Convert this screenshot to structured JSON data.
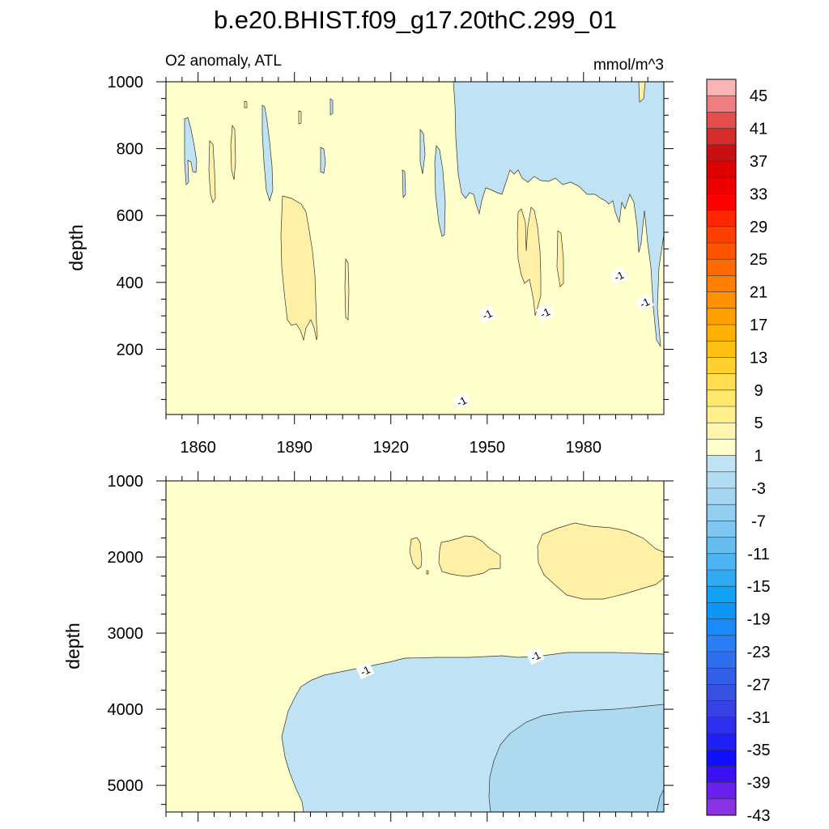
{
  "title": "b.e20.BHIST.f09_g17.20thC.299_01",
  "panel_left_label": "O2 anomaly, ATL",
  "panel_right_label": "mmol/m^3",
  "contour_label": "-1",
  "colors": {
    "background_fill": "#ffffcc",
    "pos_fill": "#fff0a5",
    "neg_fill": "#bfe3f4",
    "neg_fill_2": "#aedaf0",
    "contour_line": "#333333",
    "axis": "#000000"
  },
  "chart_data": [
    {
      "type": "heatmap",
      "title": "O2 anomaly, ATL",
      "units": "mmol/m^3",
      "xlabel": "",
      "ylabel": "depth",
      "xlim": [
        1850,
        2005
      ],
      "ylim": [
        1000,
        5
      ],
      "x_ticks": [
        1860,
        1890,
        1920,
        1950,
        1980
      ],
      "x_tick_labels": [
        "1860",
        "1890",
        "1920",
        "1950",
        "1980"
      ],
      "y_ticks": [
        200,
        400,
        600,
        800,
        1000
      ],
      "y_tick_labels": [
        "200",
        "400",
        "600",
        "800",
        "1000"
      ],
      "contour_labels": [
        {
          "x": 1942,
          "y": 45,
          "text": "-1"
        },
        {
          "x": 1950,
          "y": 305,
          "text": "-1"
        },
        {
          "x": 1968,
          "y": 310,
          "text": "-1"
        },
        {
          "x": 1991,
          "y": 420,
          "text": "-1"
        },
        {
          "x": 1999,
          "y": 340,
          "text": "-1"
        }
      ]
    },
    {
      "type": "heatmap",
      "title": "",
      "units": "mmol/m^3",
      "xlabel": "",
      "ylabel": "depth",
      "xlim": [
        1850,
        2005
      ],
      "ylim": [
        1000,
        5350
      ],
      "x_ticks": [
        1860,
        1890,
        1920,
        1950,
        1980
      ],
      "x_tick_labels": [
        "",
        "",
        "",
        "",
        ""
      ],
      "y_ticks": [
        1000,
        2000,
        3000,
        4000,
        5000
      ],
      "y_tick_labels": [
        "1000",
        "2000",
        "3000",
        "4000",
        "5000"
      ],
      "contour_labels": [
        {
          "x": 1912,
          "y": 3490,
          "text": "-1"
        },
        {
          "x": 1965,
          "y": 3300,
          "text": "-1"
        }
      ]
    }
  ],
  "colorbar": {
    "labels": [
      "45",
      "41",
      "37",
      "33",
      "29",
      "25",
      "21",
      "17",
      "13",
      "9",
      "5",
      "1",
      "-3",
      "-7",
      "-11",
      "-15",
      "-19",
      "-23",
      "-27",
      "-31",
      "-35",
      "-39",
      "-43"
    ],
    "colors": [
      "#fbb4b4",
      "#ef7f7f",
      "#e54c4c",
      "#d62b2b",
      "#c81010",
      "#dc0000",
      "#ee0000",
      "#ff0000",
      "#ff2600",
      "#ff3f00",
      "#ff5300",
      "#ff6a00",
      "#ff7d00",
      "#ff9100",
      "#ffa000",
      "#ffb000",
      "#ffc010",
      "#ffd030",
      "#ffdd4f",
      "#ffe96c",
      "#fff08c",
      "#fff5b0",
      "#ffffcc",
      "#bfe3f4",
      "#b3ddf3",
      "#a4d6f1",
      "#93cef0",
      "#7fc6f0",
      "#67bdf0",
      "#4cb4f1",
      "#2fabf3",
      "#10a2f7",
      "#0c96fa",
      "#1a8afa",
      "#2a7ef5",
      "#306ef0",
      "#335fe8",
      "#3650e0",
      "#3640e5",
      "#2c30ee",
      "#1f20f5",
      "#1010ff",
      "#3a10f5",
      "#6a20ee",
      "#8a30e5"
    ]
  }
}
